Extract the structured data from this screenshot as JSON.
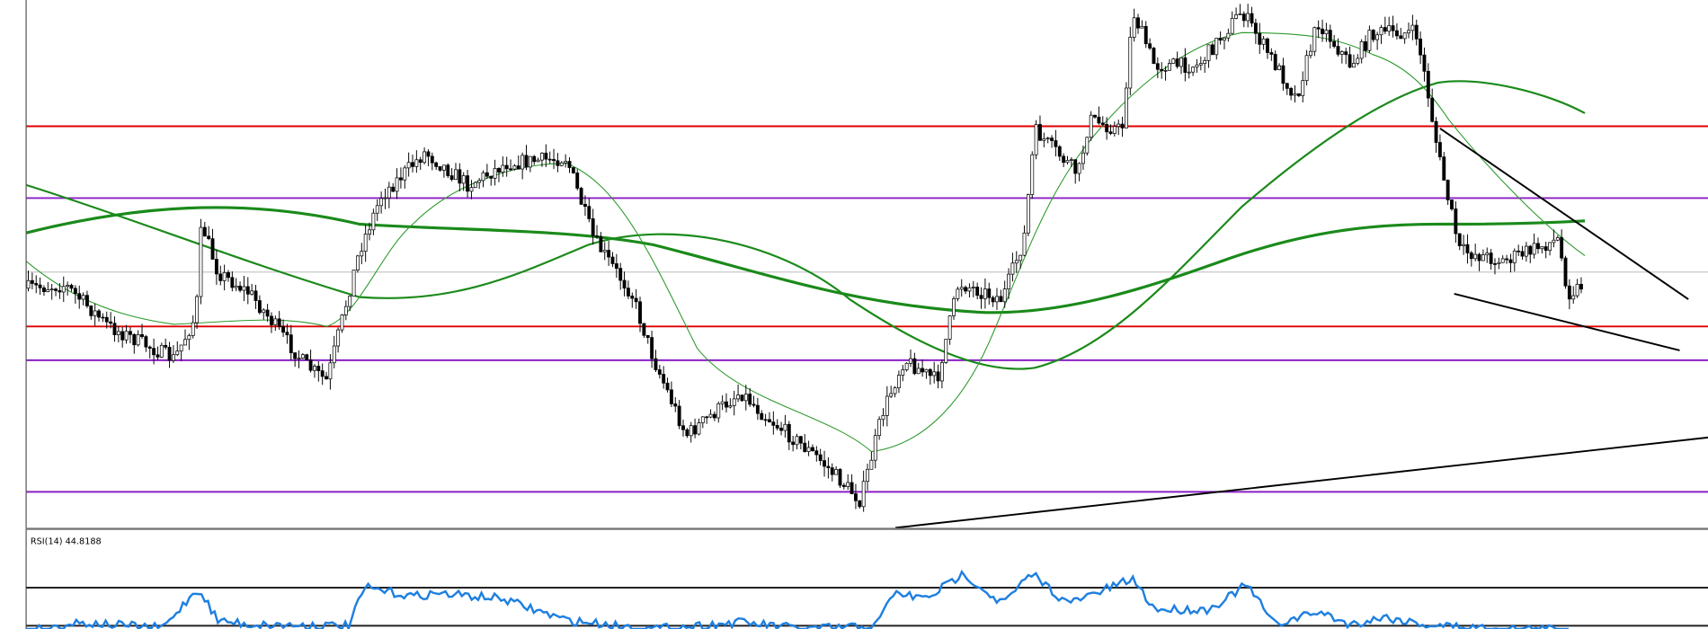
{
  "indicator": {
    "label": "RSI(14) 44.8188"
  }
}
